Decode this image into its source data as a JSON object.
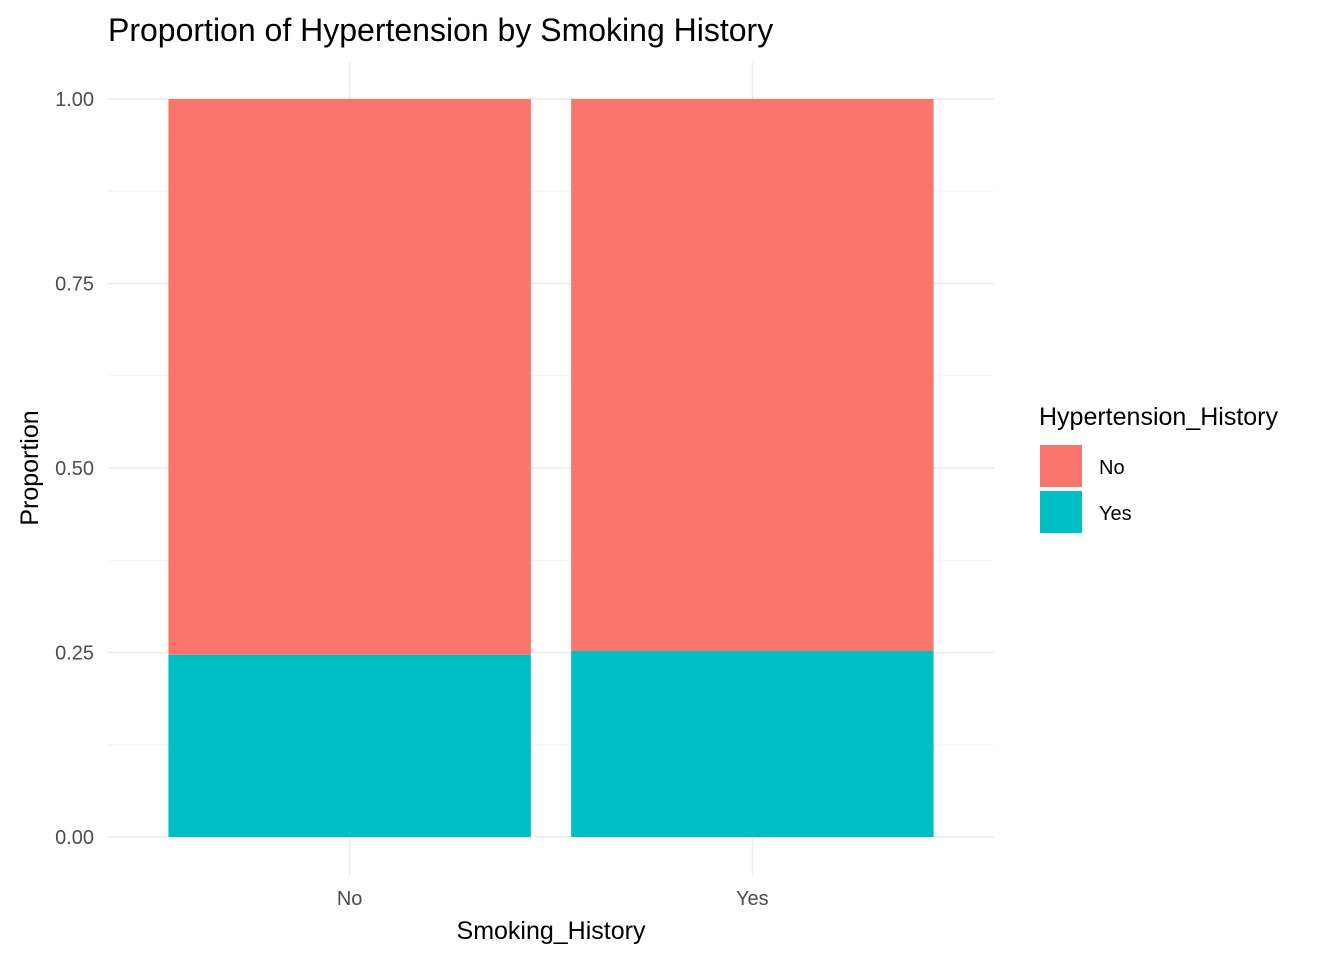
{
  "chart_data": {
    "type": "bar",
    "stacked": true,
    "title": "Proportion of Hypertension by Smoking History",
    "xlabel": "Smoking_History",
    "ylabel": "Proportion",
    "categories": [
      "No",
      "Yes"
    ],
    "ylim": [
      0,
      1
    ],
    "yticks": [
      "0.00",
      "0.25",
      "0.50",
      "0.75",
      "1.00"
    ],
    "ytick_values": [
      0,
      0.25,
      0.5,
      0.75,
      1
    ],
    "grid": true,
    "legend": {
      "title": "Hypertension_History",
      "placement": "right"
    },
    "series": [
      {
        "name": "No",
        "color": "#F8766D",
        "values": [
          0.753,
          0.748
        ]
      },
      {
        "name": "Yes",
        "color": "#00BFC4",
        "values": [
          0.247,
          0.252
        ]
      }
    ],
    "stack_order_bottom_to_top": [
      "Yes",
      "No"
    ]
  }
}
